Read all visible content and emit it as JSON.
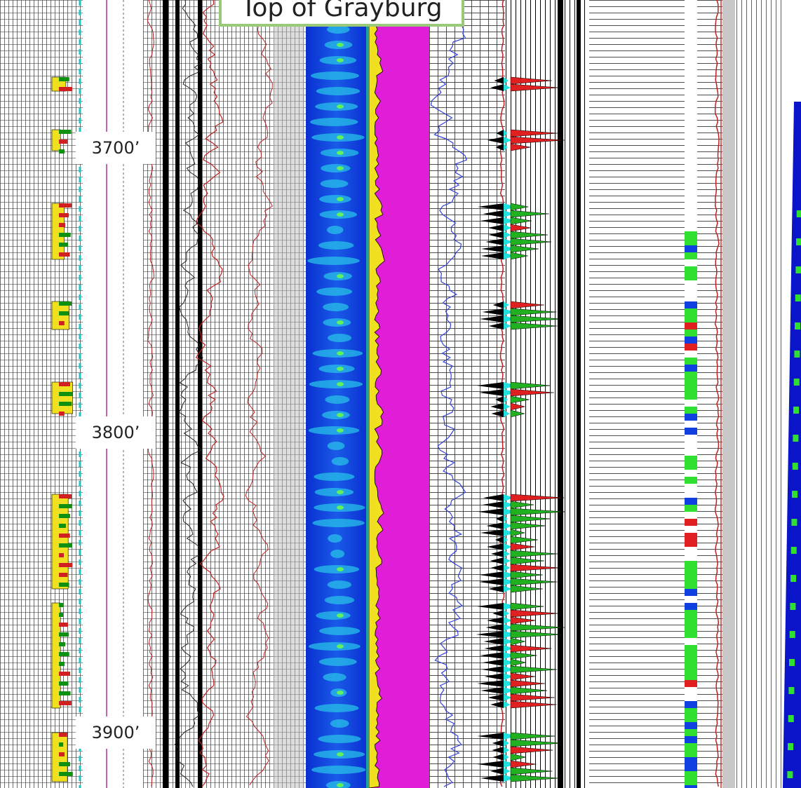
{
  "header": {
    "title": "Top of Grayburg"
  },
  "depth_labels": [
    "3700’",
    "3800’",
    "3900’"
  ]
}
